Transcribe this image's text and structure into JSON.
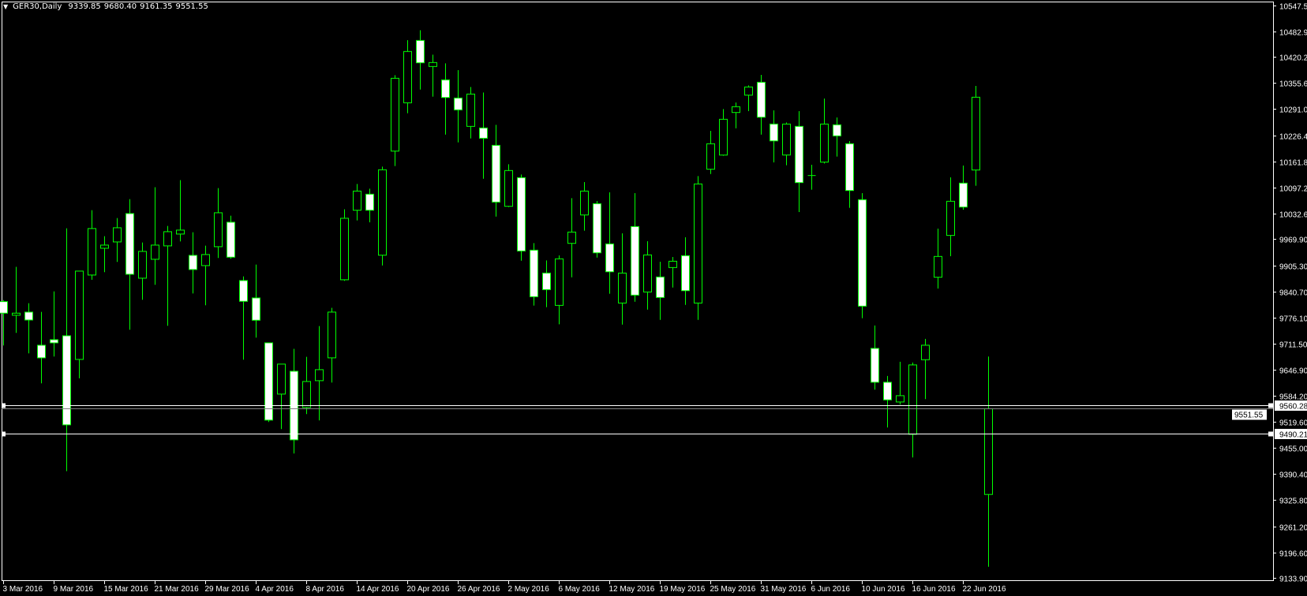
{
  "header": {
    "menu_icon": "triangle-down-icon",
    "symbol": "GER30,Daily",
    "ohlc": [
      "9339.85",
      "9680.40",
      "9161.35",
      "9551.55"
    ]
  },
  "colors": {
    "background": "#000000",
    "candle_outline": "#00ff00",
    "bear_fill": "#ffffff",
    "bull_fill": "#000000",
    "axis": "#ffffff",
    "bid_line": "#808080",
    "hline": "#ffffff"
  },
  "chart_data": {
    "type": "candlestick",
    "symbol": "GER30",
    "timeframe": "Daily",
    "ylim": [
      9133.9,
      10547.5
    ],
    "y_ticks": [
      "10547.50",
      "10482.90",
      "10420.20",
      "10355.60",
      "10291.00",
      "10226.40",
      "10161.80",
      "10097.20",
      "10032.60",
      "9969.90",
      "9905.30",
      "9840.70",
      "9776.10",
      "9711.50",
      "9646.90",
      "9584.20",
      "9519.60",
      "9455.00",
      "9390.40",
      "9325.80",
      "9261.20",
      "9196.60",
      "9133.90"
    ],
    "x_tick_every_bars": 4,
    "x_ticks": [
      "3 Mar 2016",
      "9 Mar 2016",
      "15 Mar 2016",
      "21 Mar 2016",
      "29 Mar 2016",
      "4 Apr 2016",
      "8 Apr 2016",
      "14 Apr 2016",
      "20 Apr 2016",
      "26 Apr 2016",
      "2 May 2016",
      "6 May 2016",
      "12 May 2016",
      "19 May 2016",
      "25 May 2016",
      "31 May 2016",
      "6 Jun 2016",
      "10 Jun 2016",
      "16 Jun 2016",
      "22 Jun 2016"
    ],
    "ohlc_fields": [
      "open",
      "high",
      "low",
      "close"
    ],
    "ohlc": [
      [
        9815.9,
        9819.8,
        9707.6,
        9787.4
      ],
      [
        9782.2,
        9901.6,
        9738.7,
        9787.4
      ],
      [
        9790.0,
        9812.0,
        9688.1,
        9770.5
      ],
      [
        9708.2,
        9790.6,
        9614.2,
        9677.1
      ],
      [
        9721.9,
        9841.2,
        9680.3,
        9714.1
      ],
      [
        9731.6,
        9996.9,
        9397.5,
        9511.7
      ],
      [
        9673.2,
        9891.2,
        9626.5,
        9891.2
      ],
      [
        9881.5,
        10041.7,
        9869.8,
        9996.3
      ],
      [
        9947.6,
        9977.5,
        9888.6,
        9955.4
      ],
      [
        9963.2,
        10022.2,
        9913.9,
        9998.2
      ],
      [
        10033.3,
        10068.9,
        9746.5,
        9883.4
      ],
      [
        9873.7,
        9961.9,
        9820.5,
        9939.9
      ],
      [
        9920.4,
        10098.2,
        9857.5,
        9955.4
      ],
      [
        9953.5,
        10002.8,
        9756.2,
        9988.5
      ],
      [
        9982.7,
        10115.7,
        9964.5,
        9992.4
      ],
      [
        9930.1,
        9987.2,
        9836.0,
        9895.1
      ],
      [
        9904.8,
        9954.1,
        9806.8,
        9932.1
      ],
      [
        9951.5,
        10096.2,
        9923.6,
        10035.2
      ],
      [
        10011.9,
        10028.1,
        9921.7,
        9925.6
      ],
      [
        9867.9,
        9878.2,
        9672.6,
        9816.6
      ],
      [
        9825.0,
        9907.4,
        9727.1,
        9769.9
      ],
      [
        9714.1,
        9714.1,
        9518.8,
        9523.4
      ],
      [
        9587.6,
        9661.6,
        9501.3,
        9661.6
      ],
      [
        9644.0,
        9699.2,
        9441.0,
        9474.7
      ],
      [
        9554.5,
        9679.7,
        9538.3,
        9618.7
      ],
      [
        9620.7,
        9755.6,
        9522.7,
        9647.9
      ],
      [
        9677.1,
        9800.4,
        9616.1,
        9790.0
      ],
      [
        9869.8,
        10043.7,
        9867.2,
        10021.6
      ],
      [
        10041.5,
        10106.4,
        10016.2,
        10088.8
      ],
      [
        10081.1,
        10094.7,
        10011.6,
        10041.5
      ],
      [
        9930.5,
        10149.2,
        9905.2,
        10141.4
      ],
      [
        10187.5,
        10375.0,
        10150.5,
        10367.2
      ],
      [
        10306.8,
        10461.3,
        10280.9,
        10433.4
      ],
      [
        10460.6,
        10485.9,
        10339.3,
        10405.5
      ],
      [
        10396.4,
        10425.6,
        10321.8,
        10406.1
      ],
      [
        10363.3,
        10404.2,
        10228.3,
        10319.8
      ],
      [
        10318.5,
        10387.3,
        10208.9,
        10289.3
      ],
      [
        10248.5,
        10345.8,
        10218.6,
        10328.3
      ],
      [
        10244.6,
        10332.1,
        10119.3,
        10219.2
      ],
      [
        10201.7,
        10252.4,
        10025.9,
        10061.6
      ],
      [
        10051.2,
        10155.0,
        10049.3,
        10139.5
      ],
      [
        10121.9,
        10129.7,
        9916.9,
        9940.9
      ],
      [
        9942.9,
        9960.4,
        9806.0,
        9828.0
      ],
      [
        9886.4,
        9917.6,
        9802.1,
        9845.5
      ],
      [
        9806.6,
        9929.9,
        9760.0,
        9921.5
      ],
      [
        9959.7,
        10071.3,
        9876.0,
        9987.6
      ],
      [
        10029.8,
        10110.9,
        9990.9,
        10088.8
      ],
      [
        10057.7,
        10064.2,
        9924.7,
        9936.4
      ],
      [
        9958.4,
        10085.6,
        9835.2,
        9889.6
      ],
      [
        9812.4,
        9984.4,
        9759.2,
        9886.4
      ],
      [
        10001.2,
        10083.6,
        9815.7,
        9831.9
      ],
      [
        9839.7,
        9964.9,
        9796.2,
        9931.2
      ],
      [
        9876.7,
        9914.3,
        9770.9,
        9826.1
      ],
      [
        9900.0,
        9926.0,
        9850.7,
        9915.6
      ],
      [
        9929.3,
        9974.6,
        9807.9,
        9842.9
      ],
      [
        9812.4,
        10125.8,
        9770.9,
        10106.4
      ],
      [
        10142.7,
        10237.4,
        10131.0,
        10205.6
      ],
      [
        10177.7,
        10291.3,
        10175.8,
        10266.0
      ],
      [
        10282.8,
        10307.5,
        10243.9,
        10297.1
      ],
      [
        10325.6,
        10349.7,
        10286.1,
        10345.8
      ],
      [
        10357.4,
        10375.6,
        10228.3,
        10271.1
      ],
      [
        10254.3,
        10288.0,
        10159.6,
        10212.7
      ],
      [
        10177.8,
        10258.2,
        10152.5,
        10254.3
      ],
      [
        10248.5,
        10286.1,
        10037.0,
        10109.7
      ],
      [
        10127.2,
        10153.8,
        10092.1,
        10127.2
      ],
      [
        10160.3,
        10317.3,
        10157.0,
        10254.3
      ],
      [
        10252.4,
        10270.6,
        10173.9,
        10225.1
      ],
      [
        10205.7,
        10212.2,
        10047.4,
        10090.2
      ],
      [
        10067.5,
        10083.7,
        9774.9,
        9804.7
      ],
      [
        9700.4,
        9756.9,
        9598.6,
        9616.8
      ],
      [
        9616.8,
        9632.3,
        9505.2,
        9573.3
      ],
      [
        9568.1,
        9667.4,
        9561.6,
        9583.7
      ],
      [
        9488.3,
        9665.4,
        9431.2,
        9659.6
      ],
      [
        9672.5,
        9723.8,
        9575.2,
        9708.2
      ],
      [
        9876.1,
        9996.1,
        9848.2,
        9927.4
      ],
      [
        9979.3,
        10122.6,
        9928.0,
        10063.6
      ],
      [
        10108.4,
        10151.8,
        10042.8,
        10049.3
      ],
      [
        10140.8,
        10348.4,
        10101.9,
        10320.5
      ],
      [
        9339.85,
        9680.4,
        9161.35,
        9551.55
      ]
    ],
    "horizontal_lines": [
      {
        "price": 9551.55,
        "label": "9551.55",
        "kind": "bid"
      },
      {
        "price": 9560.28,
        "label": "9560.28",
        "kind": "hline"
      },
      {
        "price": 9490.21,
        "label": "9490.21",
        "kind": "hline"
      }
    ],
    "grid": false
  }
}
